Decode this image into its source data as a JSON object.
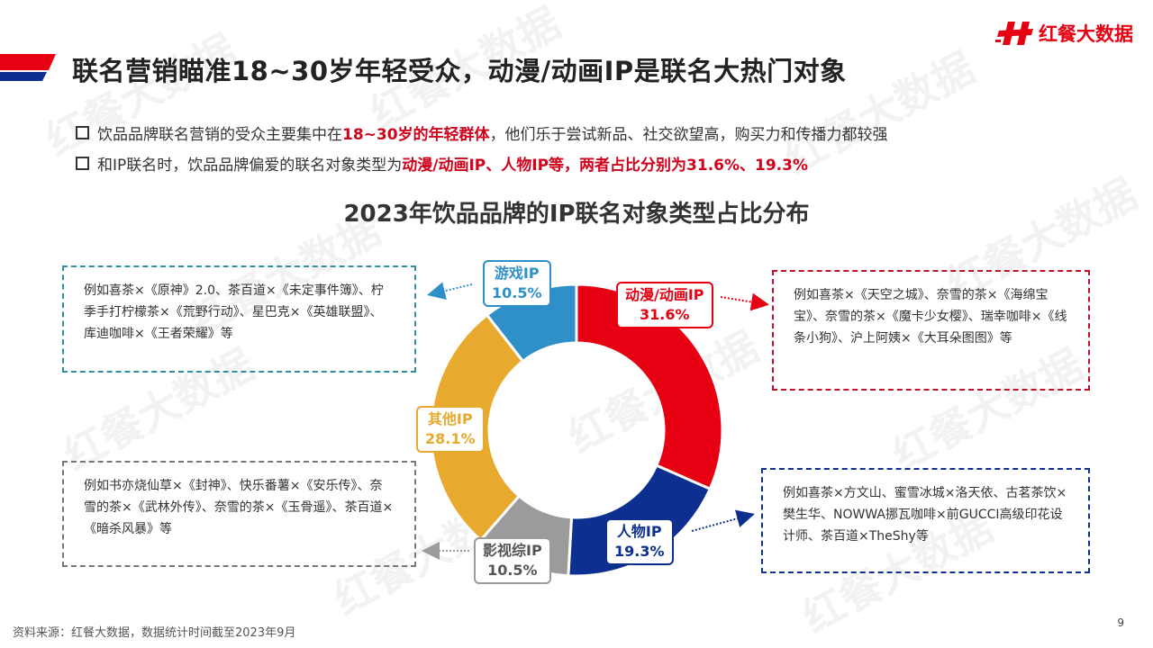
{
  "header": {
    "title": "联名营销瞄准18~30岁年轻受众，动漫/动画IP是联名大热门对象",
    "logo_text": "红餐大数据",
    "watermark_text": "红餐大数据"
  },
  "bullets": [
    {
      "pre": "饮品品牌联名营销的受众主要集中在",
      "hl": "18~30岁的年轻群体",
      "post": "，他们乐于尝试新品、社交欲望高，购买力和传播力都较强"
    },
    {
      "pre": "和IP联名时，饮品品牌偏爱的联名对象类型为",
      "hl": "动漫/动画IP、人物IP等，两者占比分别为31.6%、19.3%",
      "post": ""
    }
  ],
  "chart_data": {
    "type": "pie",
    "title": "2023年饮品品牌的IP联名对象类型占比分布",
    "unit": "%",
    "slices": [
      {
        "name": "动漫/动画IP",
        "value": 31.6,
        "label": "31.6%",
        "color": "#e60012"
      },
      {
        "name": "人物IP",
        "value": 19.3,
        "label": "19.3%",
        "color": "#0d2f8f"
      },
      {
        "name": "影视综IP",
        "value": 10.5,
        "label": "10.5%",
        "color": "#9b9b9b"
      },
      {
        "name": "其他IP",
        "value": 28.1,
        "label": "28.1%",
        "color": "#e8aa2e"
      },
      {
        "name": "游戏IP",
        "value": 10.5,
        "label": "10.5%",
        "color": "#2f8fc8"
      }
    ]
  },
  "callouts": {
    "game": "例如喜茶×《原神》2.0、茶百道×《未定事件簿》、柠季手打柠檬茶×《荒野行动》、星巴克×《英雄联盟》、库迪咖啡×《王者荣耀》等",
    "anime": "例如喜茶×《天空之城》、奈雪的茶×《海绵宝宝》、奈雪的茶×《魔卡少女樱》、瑞幸咖啡×《线条小狗》、沪上阿姨×《大耳朵图图》等",
    "other": "例如书亦烧仙草×《封神》、快乐番薯×《安乐传》、奈雪的茶×《武林外传》、奈雪的茶×《玉骨遥》、茶百道×《暗杀风暴》等",
    "person": "例如喜茶×方文山、蜜雪冰城×洛天依、古茗茶饮×樊生华、NOWWA挪瓦咖啡×前GUCCI高级印花设计师、茶百道×TheShy等"
  },
  "footer": {
    "source": "资料来源：红餐大数据，数据统计时间截至2023年9月",
    "page": "9"
  }
}
